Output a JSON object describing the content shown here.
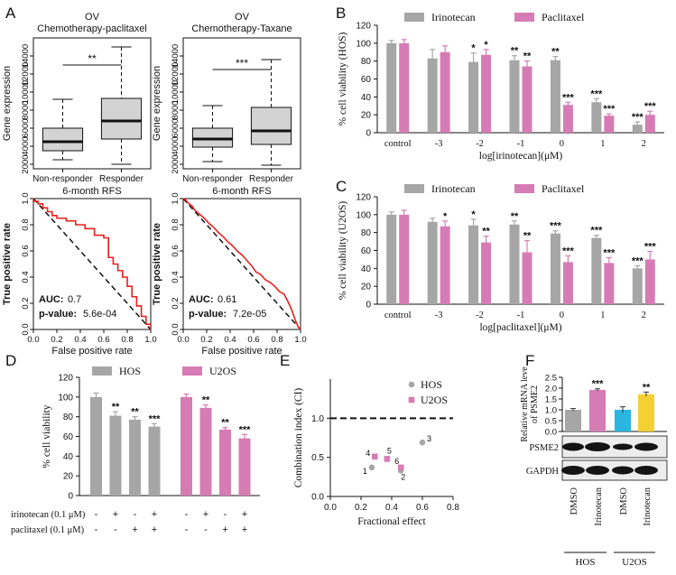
{
  "panel_letters": [
    "A",
    "B",
    "C",
    "D",
    "E",
    "F"
  ],
  "chart_data": [
    {
      "id": "A1",
      "type": "box",
      "title": "OV",
      "subtitle": "Chemotherapy-paclitaxel",
      "ylabel": "Gene expression",
      "ylim": [
        1500,
        16000
      ],
      "yticks": [
        "2000",
        "4000",
        "6000",
        "8000",
        "10000",
        "12000",
        "14000"
      ],
      "categories": [
        "Non-responder",
        "Responder"
      ],
      "boxes": [
        {
          "min": 2500,
          "q1": 3500,
          "median": 4500,
          "q3": 6000,
          "max": 9200
        },
        {
          "min": 2000,
          "q1": 4800,
          "median": 6800,
          "q3": 9300,
          "max": 15000
        }
      ],
      "significance": "**"
    },
    {
      "id": "A2",
      "type": "box",
      "title": "OV",
      "subtitle": "Chemotherapy-Taxane",
      "ylabel": "Gene expression",
      "ylim": [
        1500,
        16000
      ],
      "yticks": [
        "2000",
        "4000",
        "6000",
        "8000",
        "10000",
        "12000",
        "14000"
      ],
      "categories": [
        "Non-responder",
        "Responder"
      ],
      "boxes": [
        {
          "min": 2300,
          "q1": 3900,
          "median": 4800,
          "q3": 6000,
          "max": 8500
        },
        {
          "min": 1900,
          "q1": 4200,
          "median": 5700,
          "q3": 8300,
          "max": 13600
        }
      ],
      "significance": "***"
    },
    {
      "id": "A3",
      "type": "line",
      "title": "6-month RFS",
      "xlabel": "False positive rate",
      "ylabel": "True positive rate",
      "xlim": [
        0,
        1
      ],
      "ylim": [
        0,
        1
      ],
      "ticks": [
        "0.0",
        "0.2",
        "0.4",
        "0.6",
        "0.8",
        "1.0"
      ],
      "auc_label": "AUC:",
      "auc": "0.7",
      "pvalue_label": "p-value:",
      "pvalue": "5.6e-04",
      "x": [
        0,
        0,
        0.04,
        0.04,
        0.08,
        0.08,
        0.12,
        0.12,
        0.16,
        0.16,
        0.2,
        0.2,
        0.28,
        0.28,
        0.36,
        0.36,
        0.44,
        0.44,
        0.52,
        0.52,
        0.6,
        0.6,
        0.64,
        0.64,
        0.68,
        0.68,
        0.72,
        0.72,
        0.76,
        0.76,
        0.8,
        0.8,
        0.84,
        0.84,
        0.88,
        0.88,
        0.92,
        0.92,
        0.96,
        0.96,
        1.0,
        1.0
      ],
      "y": [
        1,
        0.98,
        0.98,
        0.96,
        0.96,
        0.93,
        0.93,
        0.9,
        0.9,
        0.87,
        0.87,
        0.85,
        0.85,
        0.83,
        0.83,
        0.8,
        0.8,
        0.77,
        0.77,
        0.72,
        0.72,
        0.7,
        0.7,
        0.55,
        0.55,
        0.5,
        0.5,
        0.45,
        0.45,
        0.4,
        0.4,
        0.33,
        0.33,
        0.25,
        0.25,
        0.18,
        0.18,
        0.1,
        0.1,
        0.04,
        0.04,
        0
      ]
    },
    {
      "id": "A4",
      "type": "line",
      "title": "6-month RFS",
      "xlabel": "False positive rate",
      "ylabel": "True positive rate",
      "xlim": [
        0,
        1
      ],
      "ylim": [
        0,
        1
      ],
      "ticks": [
        "0.0",
        "0.2",
        "0.4",
        "0.6",
        "0.8",
        "1.0"
      ],
      "auc_label": "AUC:",
      "auc": "0.61",
      "pvalue_label": "p-value:",
      "pvalue": "7.2e-05",
      "x": [
        0,
        0.02,
        0.05,
        0.08,
        0.1,
        0.14,
        0.18,
        0.22,
        0.26,
        0.3,
        0.34,
        0.38,
        0.42,
        0.46,
        0.5,
        0.54,
        0.58,
        0.62,
        0.66,
        0.7,
        0.74,
        0.78,
        0.82,
        0.86,
        0.9,
        0.92,
        0.94,
        0.96,
        0.98,
        1.0
      ],
      "y": [
        1,
        0.99,
        0.96,
        0.94,
        0.91,
        0.88,
        0.85,
        0.81,
        0.78,
        0.74,
        0.71,
        0.67,
        0.64,
        0.6,
        0.57,
        0.53,
        0.49,
        0.44,
        0.42,
        0.38,
        0.36,
        0.33,
        0.29,
        0.27,
        0.2,
        0.16,
        0.11,
        0.06,
        0.02,
        0
      ]
    },
    {
      "id": "B",
      "type": "bar",
      "ylabel": "% cell viability (HOS)",
      "xlabel": "log[irinotecan](μM)",
      "ylim": [
        0,
        120
      ],
      "yticks": [
        "0",
        "20",
        "40",
        "60",
        "80",
        "100",
        "120"
      ],
      "categories": [
        "control",
        "-3",
        "-2",
        "-1",
        "0",
        "1",
        "2"
      ],
      "series": [
        {
          "name": "Irinotecan",
          "color": "#a6a6a6",
          "values": [
            100,
            83,
            79,
            81,
            81,
            34,
            9
          ],
          "errors": [
            3,
            10,
            10,
            5,
            4,
            4,
            3
          ],
          "sig": [
            "",
            "",
            "*",
            "**",
            "**",
            "***",
            "***"
          ]
        },
        {
          "name": "Paclitaxel",
          "color": "#d67cb4",
          "values": [
            100,
            90,
            87,
            74,
            31,
            19,
            20
          ],
          "errors": [
            4,
            7,
            6,
            6,
            3,
            2,
            4
          ],
          "sig": [
            "",
            "",
            "*",
            "**",
            "***",
            "***",
            "***"
          ]
        }
      ]
    },
    {
      "id": "C",
      "type": "bar",
      "ylabel": "% cell viability (U2OS)",
      "xlabel": "log[paclitaxel](μM)",
      "ylim": [
        0,
        120
      ],
      "yticks": [
        "0",
        "20",
        "40",
        "60",
        "80",
        "100",
        "120"
      ],
      "categories": [
        "control",
        "-3",
        "-2",
        "-1",
        "0",
        "1",
        "2"
      ],
      "series": [
        {
          "name": "Irinotecan",
          "color": "#a6a6a6",
          "values": [
            100,
            92,
            88,
            89,
            79,
            74,
            40
          ],
          "errors": [
            3,
            4,
            7,
            4,
            3,
            3,
            3
          ],
          "sig": [
            "",
            "",
            "*",
            "**",
            "***",
            "***",
            "***"
          ]
        },
        {
          "name": "Paclitaxel",
          "color": "#d67cb4",
          "values": [
            100,
            87,
            69,
            58,
            47,
            46,
            50
          ],
          "errors": [
            5,
            6,
            7,
            13,
            7,
            6,
            9
          ],
          "sig": [
            "",
            "*",
            "**",
            "**",
            "***",
            "***",
            "***"
          ]
        }
      ]
    },
    {
      "id": "D",
      "type": "bar",
      "ylabel": "% cell viability",
      "ylim": [
        0,
        120
      ],
      "yticks": [
        "0",
        "20",
        "40",
        "60",
        "80",
        "100",
        "120"
      ],
      "row_labels": [
        "irinotecan (0.1 μM)",
        "paclitaxel (0.1 μM)"
      ],
      "treatment_marks": [
        [
          "-",
          "+",
          "-",
          "+",
          "-",
          "+",
          "-",
          "+"
        ],
        [
          "-",
          "-",
          "+",
          "+",
          "-",
          "-",
          "+",
          "+"
        ]
      ],
      "series": [
        {
          "name": "HOS",
          "color": "#a6a6a6",
          "values": [
            100,
            81,
            77,
            70
          ],
          "errors": [
            4,
            4,
            3,
            3
          ],
          "sig": [
            "",
            "**",
            "**",
            "***"
          ]
        },
        {
          "name": "U2OS",
          "color": "#d67cb4",
          "values": [
            100,
            89,
            67,
            58
          ],
          "errors": [
            3,
            3,
            2,
            4
          ],
          "sig": [
            "",
            "**",
            "**",
            "***"
          ]
        }
      ]
    },
    {
      "id": "E",
      "type": "scatter",
      "xlabel": "Fractional effect",
      "ylabel": "Combination index (CI)",
      "xlim": [
        0,
        0.8
      ],
      "ylim": [
        0,
        1.5
      ],
      "xticks": [
        "0.0",
        "0.2",
        "0.4",
        "0.6",
        "0.8"
      ],
      "yticks": [
        "0.0",
        "0.5",
        "1.0"
      ],
      "reference_line": 1.0,
      "series": [
        {
          "name": "HOS",
          "color": "#a6a6a6",
          "points": [
            {
              "label": "1",
              "x": 0.27,
              "y": 0.37
            },
            {
              "label": "2",
              "x": 0.46,
              "y": 0.33
            },
            {
              "label": "3",
              "x": 0.6,
              "y": 0.69
            }
          ]
        },
        {
          "name": "U2OS",
          "color": "#d67cb4",
          "points": [
            {
              "label": "4",
              "x": 0.29,
              "y": 0.51
            },
            {
              "label": "5",
              "x": 0.37,
              "y": 0.48
            },
            {
              "label": "6",
              "x": 0.46,
              "y": 0.37
            }
          ]
        }
      ]
    },
    {
      "id": "F",
      "type": "bar",
      "ylabel": "Relative mRNA leve of PSME2",
      "ylim": [
        0,
        2.5
      ],
      "yticks": [
        "0.0",
        "0.5",
        "1.0",
        "1.5",
        "2.0",
        "2.5"
      ],
      "categories": [
        "DMSO",
        "Irinotecan",
        "DMSO",
        "Irinotecan"
      ],
      "values": [
        1.0,
        1.92,
        1.0,
        1.72
      ],
      "errors": [
        0.06,
        0.05,
        0.14,
        0.1
      ],
      "colors": [
        "#a6a6a6",
        "#d67cb4",
        "#29b6e0",
        "#f5d033"
      ],
      "sig": [
        "",
        "***",
        "",
        "**"
      ],
      "blot_labels": [
        "PSME2",
        "GAPDH"
      ],
      "groups": [
        "HOS",
        "U2OS"
      ]
    }
  ]
}
